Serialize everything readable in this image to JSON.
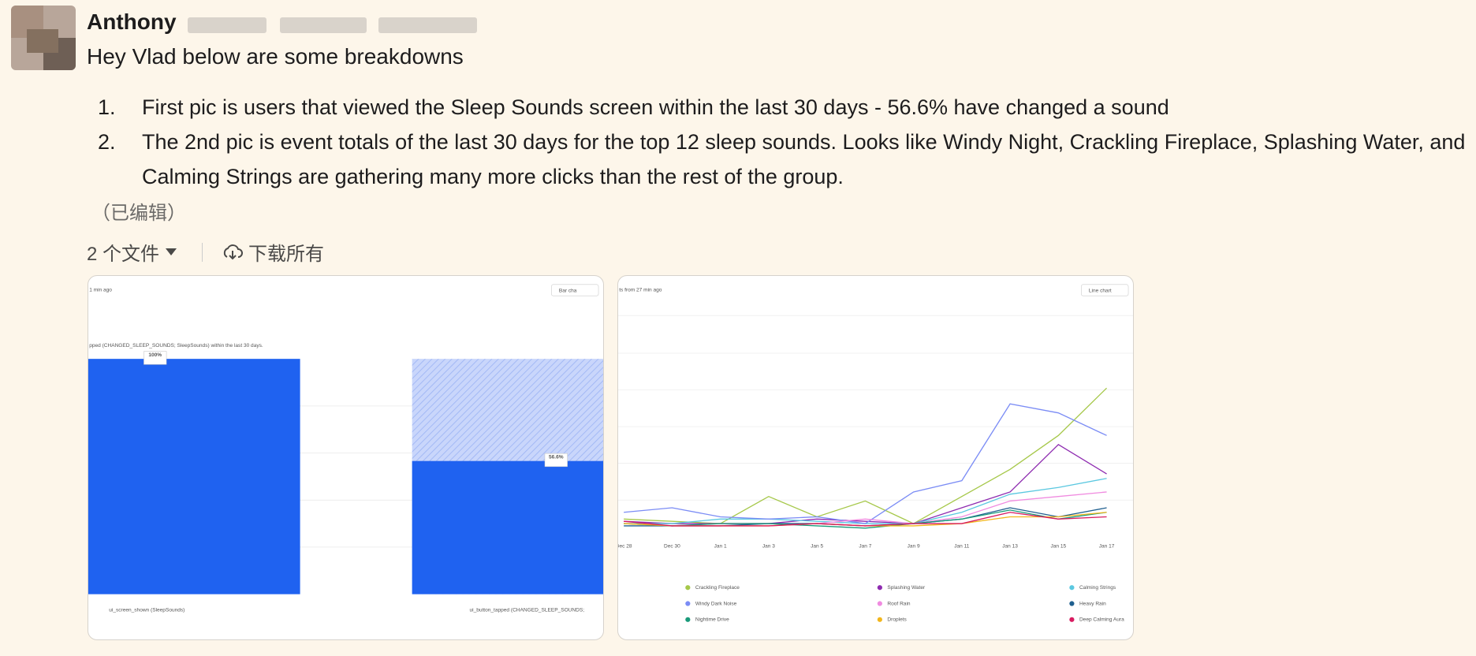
{
  "message": {
    "author": "Anthony",
    "text": "Hey Vlad below are some breakdowns",
    "list": [
      {
        "number": "1.",
        "text": "First pic is users that viewed the Sleep Sounds screen within the last 30 days - 56.6% have changed a sound"
      },
      {
        "number": "2.",
        "text": "The 2nd pic is event totals of the last 30 days for the top 12 sleep sounds. Looks like Windy Night, Crackling Fireplace, Splashing Water, and Calming Strings are gathering many more clicks than the rest of the group."
      }
    ],
    "edited": "（已编辑）"
  },
  "files": {
    "count_label": "2 个文件",
    "download_all": "下载所有"
  },
  "chart_data": [
    {
      "type": "bar",
      "header": "1 min ago",
      "view_button": "Bar cha",
      "subtitle": "pped (CHANGED_SLEEP_SOUNDS; SleepSounds) within the last 30 days.",
      "categories": [
        "ui_screen_shown (SleepSounds)",
        "ui_button_tapped (CHANGED_SLEEP_SOUNDS;"
      ],
      "values": [
        100,
        56.6
      ],
      "value_labels": [
        "100%",
        "56.6%"
      ],
      "color": "#1f62f0",
      "ylim": [
        0,
        100
      ]
    },
    {
      "type": "line",
      "header": "ts from 27 min ago",
      "view_button": "Line chart",
      "categories": [
        "Dec 28",
        "Dec 30",
        "Jan 1",
        "Jan 3",
        "Jan 5",
        "Jan 7",
        "Jan 9",
        "Jan 11",
        "Jan 13",
        "Jan 15",
        "Jan 17"
      ],
      "ylim": [
        0,
        100
      ],
      "series": [
        {
          "name": "Crackling Fireplace",
          "color": "#a6c84a",
          "values": [
            7,
            6,
            5,
            17,
            8,
            15,
            5,
            17,
            29,
            44,
            65
          ]
        },
        {
          "name": "Splashing Water",
          "color": "#8e2bb0",
          "values": [
            6,
            5,
            5,
            5,
            7,
            6,
            5,
            12,
            19,
            40,
            27
          ]
        },
        {
          "name": "Calming Strings",
          "color": "#5bc8e0",
          "values": [
            5,
            5,
            7,
            7,
            6,
            5,
            5,
            10,
            18,
            21,
            25
          ]
        },
        {
          "name": "Windy Dark Noise",
          "color": "#7b8cf5",
          "values": [
            10,
            12,
            8,
            7,
            8,
            5,
            19,
            24,
            58,
            54,
            44
          ]
        },
        {
          "name": "Roof Rain",
          "color": "#f08be0",
          "values": [
            5,
            4,
            5,
            5,
            5,
            7,
            5,
            8,
            15,
            17,
            19
          ]
        },
        {
          "name": "Heavy Rain",
          "color": "#1f5f8f",
          "values": [
            4,
            4,
            4,
            5,
            5,
            4,
            5,
            7,
            12,
            8,
            12
          ]
        },
        {
          "name": "Nightime Drive",
          "color": "#1a9a7a",
          "values": [
            5,
            4,
            5,
            5,
            4,
            3,
            5,
            7,
            11,
            7,
            10
          ]
        },
        {
          "name": "Droplets",
          "color": "#f2b61c",
          "values": [
            5,
            4,
            4,
            4,
            5,
            4,
            4,
            5,
            8,
            8,
            10
          ]
        },
        {
          "name": "Deep Calming Aura",
          "color": "#d81b60",
          "values": [
            6,
            4,
            4,
            4,
            5,
            4,
            5,
            5,
            10,
            7,
            8
          ]
        }
      ]
    }
  ]
}
